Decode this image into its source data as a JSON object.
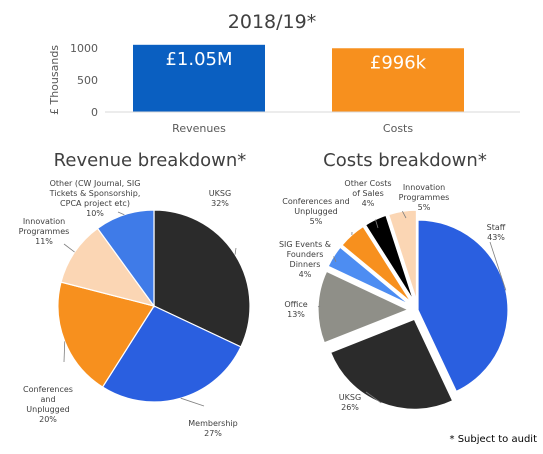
{
  "chart_data": [
    {
      "type": "bar",
      "title": "2018/19*",
      "ylabel": "£ Thousands",
      "ylim": [
        0,
        1000
      ],
      "yticks": [
        "0",
        "500",
        "1000"
      ],
      "categories": [
        "Revenues",
        "Costs"
      ],
      "values": [
        1050,
        996
      ],
      "data_labels": [
        "£1.05M",
        "£996k"
      ],
      "colors": [
        "#0a5fc1",
        "#f7901e"
      ],
      "grid": false
    },
    {
      "type": "pie",
      "title": "Revenue breakdown*",
      "slices": [
        {
          "label": [
            "UKSG"
          ],
          "pct_label": "32%",
          "value": 32,
          "color": "#2b2b2b"
        },
        {
          "label": [
            "Membership"
          ],
          "pct_label": "27%",
          "value": 27,
          "color": "#2a5fe0"
        },
        {
          "label": [
            "Conferences",
            "and",
            "Unplugged"
          ],
          "pct_label": "20%",
          "value": 20,
          "color": "#f7901e"
        },
        {
          "label": [
            "Innovation",
            "Programmes"
          ],
          "pct_label": "11%",
          "value": 11,
          "color": "#fbd6b4"
        },
        {
          "label": [
            "Other (CW Journal, SIG",
            "Tickets & Sponsorship,",
            "CPCA project etc)"
          ],
          "pct_label": "10%",
          "value": 10,
          "color": "#3f7be8"
        }
      ]
    },
    {
      "type": "pie",
      "title": "Costs breakdown*",
      "slices": [
        {
          "label": [
            "Staff"
          ],
          "pct_label": "43%",
          "value": 43,
          "color": "#2a5fe0"
        },
        {
          "label": [
            "UKSG"
          ],
          "pct_label": "26%",
          "value": 26,
          "color": "#2b2b2b"
        },
        {
          "label": [
            "Office"
          ],
          "pct_label": "13%",
          "value": 13,
          "color": "#8f8f88"
        },
        {
          "label": [
            "SIG Events &",
            "Founders",
            "Dinners"
          ],
          "pct_label": "4%",
          "value": 4,
          "color": "#4d8df2"
        },
        {
          "label": [
            "Conferences and",
            "Unplugged"
          ],
          "pct_label": "5%",
          "value": 5,
          "color": "#f7901e"
        },
        {
          "label": [
            "Other Costs",
            "of Sales"
          ],
          "pct_label": "4%",
          "value": 4,
          "color": "#000000"
        },
        {
          "label": [
            "Innovation",
            "Programmes"
          ],
          "pct_label": "5%",
          "value": 5,
          "color": "#fbd6b4"
        }
      ]
    }
  ],
  "footnote": "* Subject to audit"
}
